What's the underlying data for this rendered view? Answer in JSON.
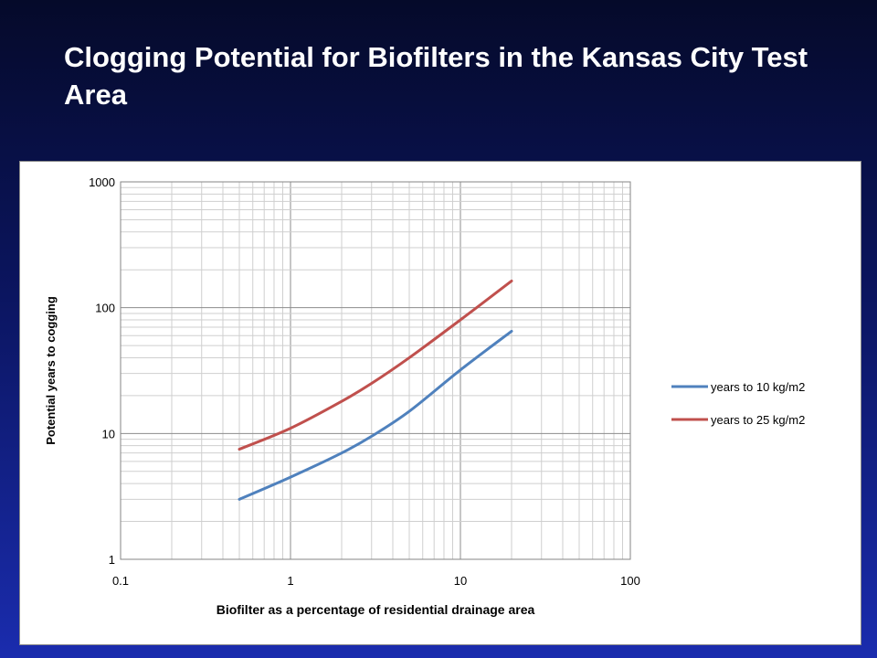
{
  "slide": {
    "title": "Clogging Potential for Biofilters in the Kansas City Test Area"
  },
  "chart_data": {
    "type": "line",
    "title": "",
    "xlabel": "Biofilter as a percentage of residential drainage area",
    "ylabel": "Potential years to cogging",
    "xscale": "log",
    "yscale": "log",
    "xlim": [
      0.1,
      100
    ],
    "ylim": [
      1,
      1000
    ],
    "xticks": [
      "0.1",
      "1",
      "10",
      "100"
    ],
    "yticks": [
      "1",
      "10",
      "100",
      "1000"
    ],
    "grid": true,
    "legend_position": "right",
    "series": [
      {
        "name": "years to 10 kg/m2",
        "color": "#4f81bd",
        "x": [
          0.5,
          1,
          2,
          3,
          5,
          10,
          20
        ],
        "y": [
          3.0,
          4.5,
          7.0,
          9.5,
          15,
          32,
          65
        ]
      },
      {
        "name": "years to 25 kg/m2",
        "color": "#c0504d",
        "x": [
          0.5,
          1,
          2,
          3,
          5,
          10,
          20
        ],
        "y": [
          7.5,
          11,
          18,
          25,
          40,
          80,
          163
        ]
      }
    ]
  }
}
